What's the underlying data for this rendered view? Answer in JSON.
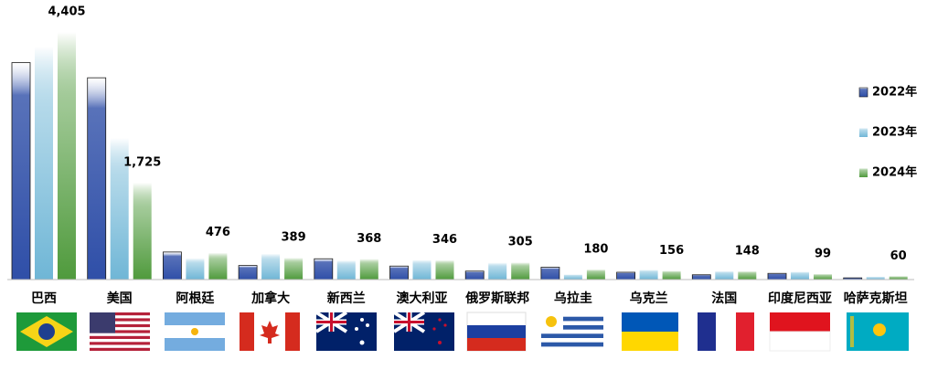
{
  "chart_data": {
    "type": "bar",
    "categories": [
      "巴西",
      "美国",
      "阿根廷",
      "加拿大",
      "新西兰",
      "澳大利亚",
      "俄罗斯联邦",
      "乌拉圭",
      "乌克兰",
      "法国",
      "印度尼西亚",
      "哈萨克斯坦"
    ],
    "series": [
      {
        "name": "2022年",
        "color": "#2f4fa8",
        "values": [
          3860,
          3590,
          490,
          250,
          370,
          240,
          150,
          220,
          130,
          85,
          110,
          30
        ]
      },
      {
        "name": "2023年",
        "color": "#6fb6d6",
        "values": [
          4150,
          2520,
          380,
          460,
          340,
          350,
          300,
          90,
          175,
          150,
          140,
          50
        ]
      },
      {
        "name": "2024年",
        "color": "#4f9a3c",
        "values": [
          4405,
          1725,
          476,
          389,
          368,
          346,
          305,
          180,
          156,
          148,
          99,
          60
        ],
        "value_labels": [
          "4,405",
          "1,725",
          "476",
          "389",
          "368",
          "346",
          "305",
          "180",
          "156",
          "148",
          "99",
          "60"
        ]
      }
    ],
    "legend": "right"
  }
}
